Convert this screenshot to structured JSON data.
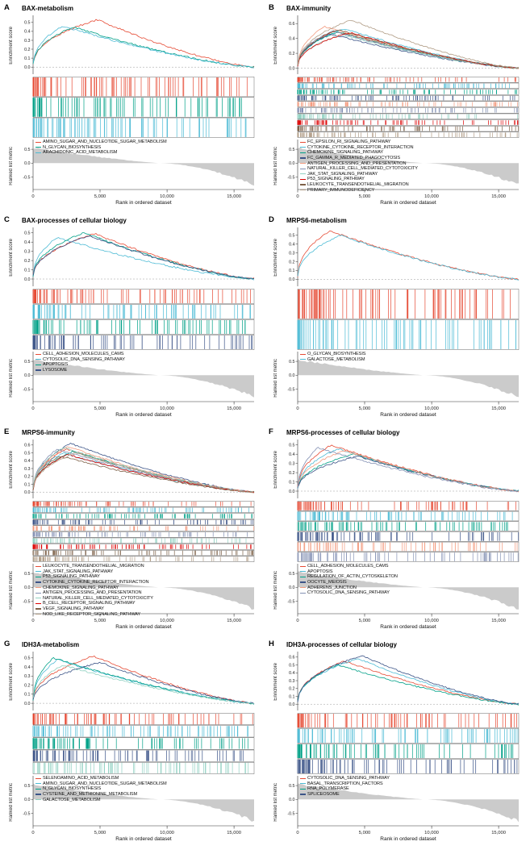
{
  "figure": {
    "x_axis_label": "Rank in ordered dataset",
    "x_ticks": [
      "0",
      "5,000",
      "10,000",
      "15,000"
    ],
    "x_tick_values": [
      0,
      5000,
      10000,
      15000
    ],
    "x_max": 16500,
    "es_axis_label": "Enrichment score",
    "metric_axis_label": "Ranked list metric",
    "metric_tick_values": [
      0.5,
      0.0,
      -0.5
    ],
    "ranked_metric": {
      "positive_start": 0.55,
      "zero_cross_rank": 9500,
      "negative_end": -0.78
    },
    "area_color": "#cbcbcb"
  },
  "chart_data": {
    "type": "line",
    "description": "GSEA enrichment plots: enrichment score curves, hit rugs and ranked list metric per gene",
    "panels": [
      {
        "label": "A",
        "title": "BAX-metabolism",
        "es_ticks": [
          0.0,
          0.1,
          0.2,
          0.3,
          0.4,
          0.5
        ],
        "es_max": 0.57,
        "pathways": [
          {
            "name": "AMINO_SUGAR_AND_NUCLEOTIDE_SUGAR_METABOLISM",
            "color": "#E64B35",
            "peak_rank": 4800,
            "peak_es": 0.53
          },
          {
            "name": "N_GLYCAN_BIOSYNTHESIS",
            "color": "#00A087",
            "peak_rank": 3000,
            "peak_es": 0.45
          },
          {
            "name": "ARACHIDONIC_ACID_METABOLISM",
            "color": "#4DBBD5",
            "peak_rank": 2200,
            "peak_es": 0.46
          }
        ]
      },
      {
        "label": "B",
        "title": "BAX-immunity",
        "es_ticks": [
          0.0,
          0.2,
          0.4,
          0.6
        ],
        "es_max": 0.7,
        "pathways": [
          {
            "name": "FC_EPSILON_RI_SIGNALING_PATHWAY",
            "color": "#E64B35",
            "peak_rank": 2800,
            "peak_es": 0.5
          },
          {
            "name": "CYTOKINE_CYTOKINE_RECEPTOR_INTERACTION",
            "color": "#4DBBD5",
            "peak_rank": 3500,
            "peak_es": 0.53
          },
          {
            "name": "CHEMOKINE_SIGNALING_PATHWAY",
            "color": "#00A087",
            "peak_rank": 3000,
            "peak_es": 0.49
          },
          {
            "name": "FC_GAMMA_R_MEDIATED_PHAGOCYTOSIS",
            "color": "#3C5488",
            "peak_rank": 2400,
            "peak_es": 0.46
          },
          {
            "name": "ANTIGEN_PROCESSING_AND_PRESENTATION",
            "color": "#F39B7F",
            "peak_rank": 2000,
            "peak_es": 0.56
          },
          {
            "name": "NATURAL_KILLER_CELL_MEDIATED_CYTOTOXICITY",
            "color": "#8491B4",
            "peak_rank": 2600,
            "peak_es": 0.5
          },
          {
            "name": "JAK_STAT_SIGNALING_PATHWAY",
            "color": "#91D1C2",
            "peak_rank": 3300,
            "peak_es": 0.45
          },
          {
            "name": "P53_SIGNALING_PATHWAY",
            "color": "#DC0000",
            "peak_rank": 3900,
            "peak_es": 0.48
          },
          {
            "name": "LEUKOCYTE_TRANSENDOTHELIAL_MIGRATION",
            "color": "#7E6148",
            "peak_rank": 3000,
            "peak_es": 0.52
          },
          {
            "name": "PRIMARY_IMMUNODEFICIENCY",
            "color": "#B09C85",
            "peak_rank": 4000,
            "peak_es": 0.65
          }
        ]
      },
      {
        "label": "C",
        "title": "BAX-processes of cellular biology",
        "es_ticks": [
          0.0,
          0.1,
          0.2,
          0.3,
          0.4,
          0.5
        ],
        "es_max": 0.55,
        "pathways": [
          {
            "name": "CELL_ADHESION_MOLECULES_CAMS",
            "color": "#E64B35",
            "peak_rank": 4600,
            "peak_es": 0.49
          },
          {
            "name": "CYTOSOLIC_DNA_SENSING_PATHWAY",
            "color": "#4DBBD5",
            "peak_rank": 1800,
            "peak_es": 0.45
          },
          {
            "name": "APOPTOSIS",
            "color": "#00A087",
            "peak_rank": 3800,
            "peak_es": 0.5
          },
          {
            "name": "LYSOSOME",
            "color": "#3C5488",
            "peak_rank": 4200,
            "peak_es": 0.47
          }
        ]
      },
      {
        "label": "D",
        "title": "MRPS6-metabolism",
        "es_ticks": [
          0.0,
          0.1,
          0.2,
          0.3,
          0.4,
          0.5
        ],
        "es_max": 0.58,
        "pathways": [
          {
            "name": "O_GLYCAN_BIOSYNTHESIS",
            "color": "#E64B35",
            "peak_rank": 2400,
            "peak_es": 0.55
          },
          {
            "name": "GALACTOSE_METABOLISM",
            "color": "#4DBBD5",
            "peak_rank": 3200,
            "peak_es": 0.5
          }
        ]
      },
      {
        "label": "E",
        "title": "MRPS6-immunity",
        "es_ticks": [
          0.0,
          0.1,
          0.2,
          0.3,
          0.4,
          0.5,
          0.6
        ],
        "es_max": 0.66,
        "pathways": [
          {
            "name": "LEUKOCYTE_TRANSENDOTHELIAL_MIGRATION",
            "color": "#E64B35",
            "peak_rank": 2500,
            "peak_es": 0.55
          },
          {
            "name": "JAK_STAT_SIGNALING_PATHWAY",
            "color": "#4DBBD5",
            "peak_rank": 2200,
            "peak_es": 0.5
          },
          {
            "name": "P53_SIGNALING_PATHWAY",
            "color": "#00A087",
            "peak_rank": 3000,
            "peak_es": 0.52
          },
          {
            "name": "CYTOKINE_CYTOKINE_RECEPTOR_INTERACTION",
            "color": "#3C5488",
            "peak_rank": 2800,
            "peak_es": 0.62
          },
          {
            "name": "CHEMOKINE_SIGNALING_PATHWAY",
            "color": "#F39B7F",
            "peak_rank": 2600,
            "peak_es": 0.58
          },
          {
            "name": "ANTIGEN_PROCESSING_AND_PRESENTATION",
            "color": "#8491B4",
            "peak_rank": 1800,
            "peak_es": 0.55
          },
          {
            "name": "NATURAL_KILLER_CELL_MEDIATED_CYTOTOXICITY",
            "color": "#91D1C2",
            "peak_rank": 2300,
            "peak_es": 0.57
          },
          {
            "name": "B_CELL_RECEPTOR_SIGNALING_PATHWAY",
            "color": "#DC0000",
            "peak_rank": 2600,
            "peak_es": 0.48
          },
          {
            "name": "VEGF_SIGNALING_PATHWAY",
            "color": "#7E6148",
            "peak_rank": 2000,
            "peak_es": 0.46
          },
          {
            "name": "NOD_LIKE_RECEPTOR_SIGNALING_PATHWAY",
            "color": "#B09C85",
            "peak_rank": 3200,
            "peak_es": 0.5
          }
        ]
      },
      {
        "label": "F",
        "title": "MRPS6-processes of cellular biology",
        "es_ticks": [
          0.0,
          0.1,
          0.2,
          0.3,
          0.4,
          0.5
        ],
        "es_max": 0.55,
        "pathways": [
          {
            "name": "CELL_ADHESION_MOLECULES_CAMS",
            "color": "#E64B35",
            "peak_rank": 2500,
            "peak_es": 0.5
          },
          {
            "name": "APOPTOSIS",
            "color": "#4DBBD5",
            "peak_rank": 3000,
            "peak_es": 0.46
          },
          {
            "name": "REGULATION_OF_ACTIN_CYTOSKELETON",
            "color": "#00A087",
            "peak_rank": 4200,
            "peak_es": 0.4
          },
          {
            "name": "OOCYTE_MEIOSIS",
            "color": "#3C5488",
            "peak_rank": 4500,
            "peak_es": 0.38
          },
          {
            "name": "ADHERENS_JUNCTION",
            "color": "#F39B7F",
            "peak_rank": 3500,
            "peak_es": 0.44
          },
          {
            "name": "CYTOSOLIC_DNA_SENSING_PATHWAY",
            "color": "#8491B4",
            "peak_rank": 1500,
            "peak_es": 0.47
          }
        ]
      },
      {
        "label": "G",
        "title": "IDH3A-metabolism",
        "es_ticks": [
          0.0,
          0.1,
          0.2,
          0.3,
          0.4,
          0.5
        ],
        "es_max": 0.56,
        "pathways": [
          {
            "name": "SELENOAMINO_ACID_METABOLISM",
            "color": "#E64B35",
            "peak_rank": 4500,
            "peak_es": 0.52
          },
          {
            "name": "AMINO_SUGAR_AND_NUCLEOTIDE_SUGAR_METABOLISM",
            "color": "#4DBBD5",
            "peak_rank": 1800,
            "peak_es": 0.48
          },
          {
            "name": "N_GLYCAN_BIOSYNTHESIS",
            "color": "#00A087",
            "peak_rank": 1500,
            "peak_es": 0.5
          },
          {
            "name": "CYSTEINE_AND_METHIONINE_METABOLISM",
            "color": "#3C5488",
            "peak_rank": 5000,
            "peak_es": 0.45
          },
          {
            "name": "GALACTOSE_METABOLISM",
            "color": "#91D1C2",
            "peak_rank": 2200,
            "peak_es": 0.42
          }
        ]
      },
      {
        "label": "H",
        "title": "IDH3A-processes of cellular biology",
        "es_ticks": [
          0.0,
          0.1,
          0.2,
          0.3,
          0.4,
          0.5,
          0.6
        ],
        "es_max": 0.66,
        "pathways": [
          {
            "name": "CYTOSOLIC_DNA_SENSING_PATHWAY",
            "color": "#E64B35",
            "peak_rank": 3500,
            "peak_es": 0.55
          },
          {
            "name": "BASAL_TRANSCRIPTION_FACTORS",
            "color": "#4DBBD5",
            "peak_rank": 4500,
            "peak_es": 0.58
          },
          {
            "name": "RNA_POLYMERASE",
            "color": "#00A087",
            "peak_rank": 3000,
            "peak_es": 0.5
          },
          {
            "name": "SPLICEOSOME",
            "color": "#3C5488",
            "peak_rank": 4800,
            "peak_es": 0.62
          }
        ]
      }
    ]
  }
}
